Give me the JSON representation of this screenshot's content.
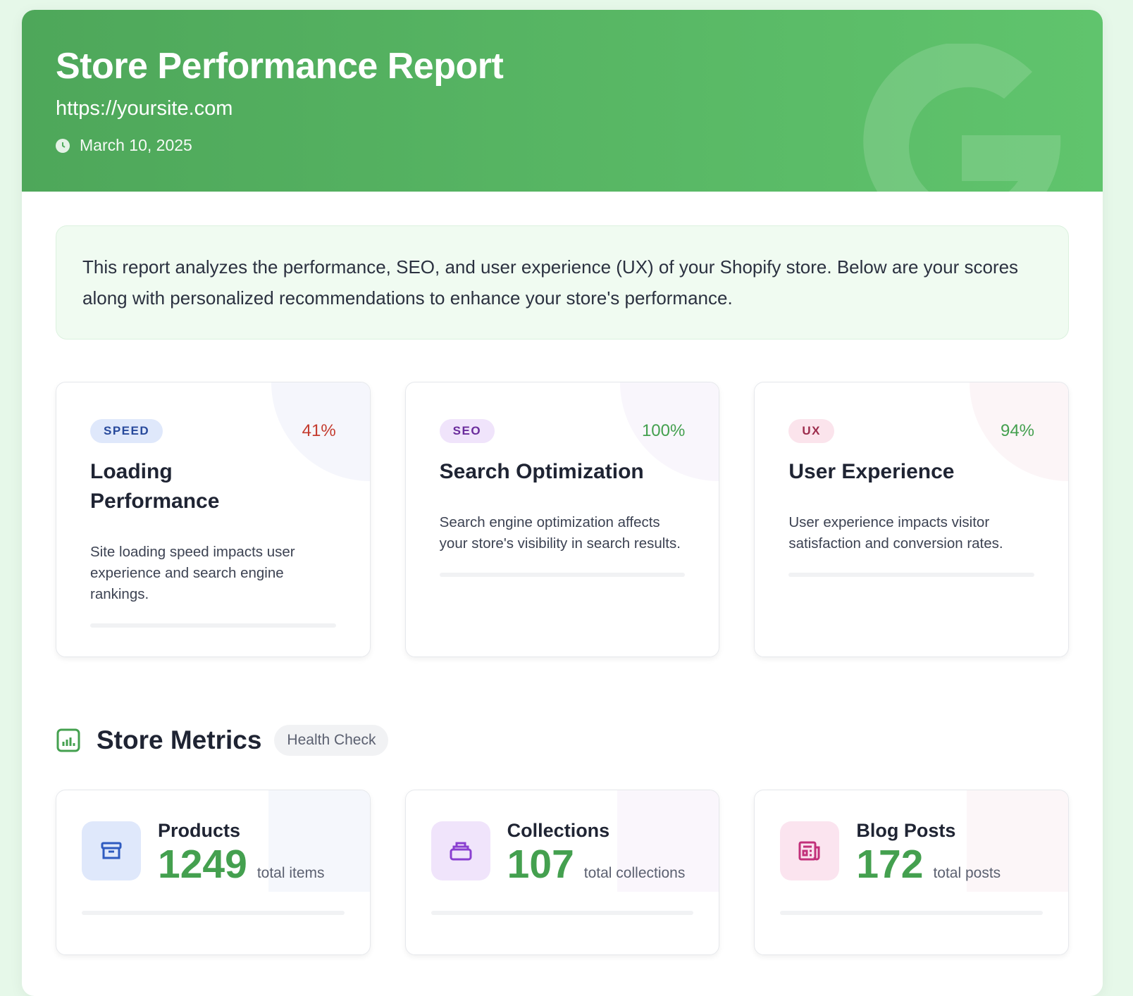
{
  "header": {
    "title": "Store Performance Report",
    "url": "https://yoursite.com",
    "date": "March 10, 2025"
  },
  "intro": "This report analyzes the performance, SEO, and user experience (UX) of your Shopify store. Below are your scores along with personalized recommendations to enhance your store's performance.",
  "scores": [
    {
      "tag": "SPEED",
      "score": "41%",
      "title": "Loading Performance",
      "description": "Site loading speed impacts user experience and search engine rankings."
    },
    {
      "tag": "SEO",
      "score": "100%",
      "title": "Search Optimization",
      "description": "Search engine optimization affects your store's visibility in search results."
    },
    {
      "tag": "UX",
      "score": "94%",
      "title": "User Experience",
      "description": "User experience impacts visitor satisfaction and conversion rates."
    }
  ],
  "metrics": {
    "title": "Store Metrics",
    "badge": "Health Check",
    "items": [
      {
        "label": "Products",
        "value": 1249,
        "unit": "total items"
      },
      {
        "label": "Collections",
        "value": 107,
        "unit": "total collections"
      },
      {
        "label": "Blog Posts",
        "value": 172,
        "unit": "total posts"
      }
    ]
  }
}
